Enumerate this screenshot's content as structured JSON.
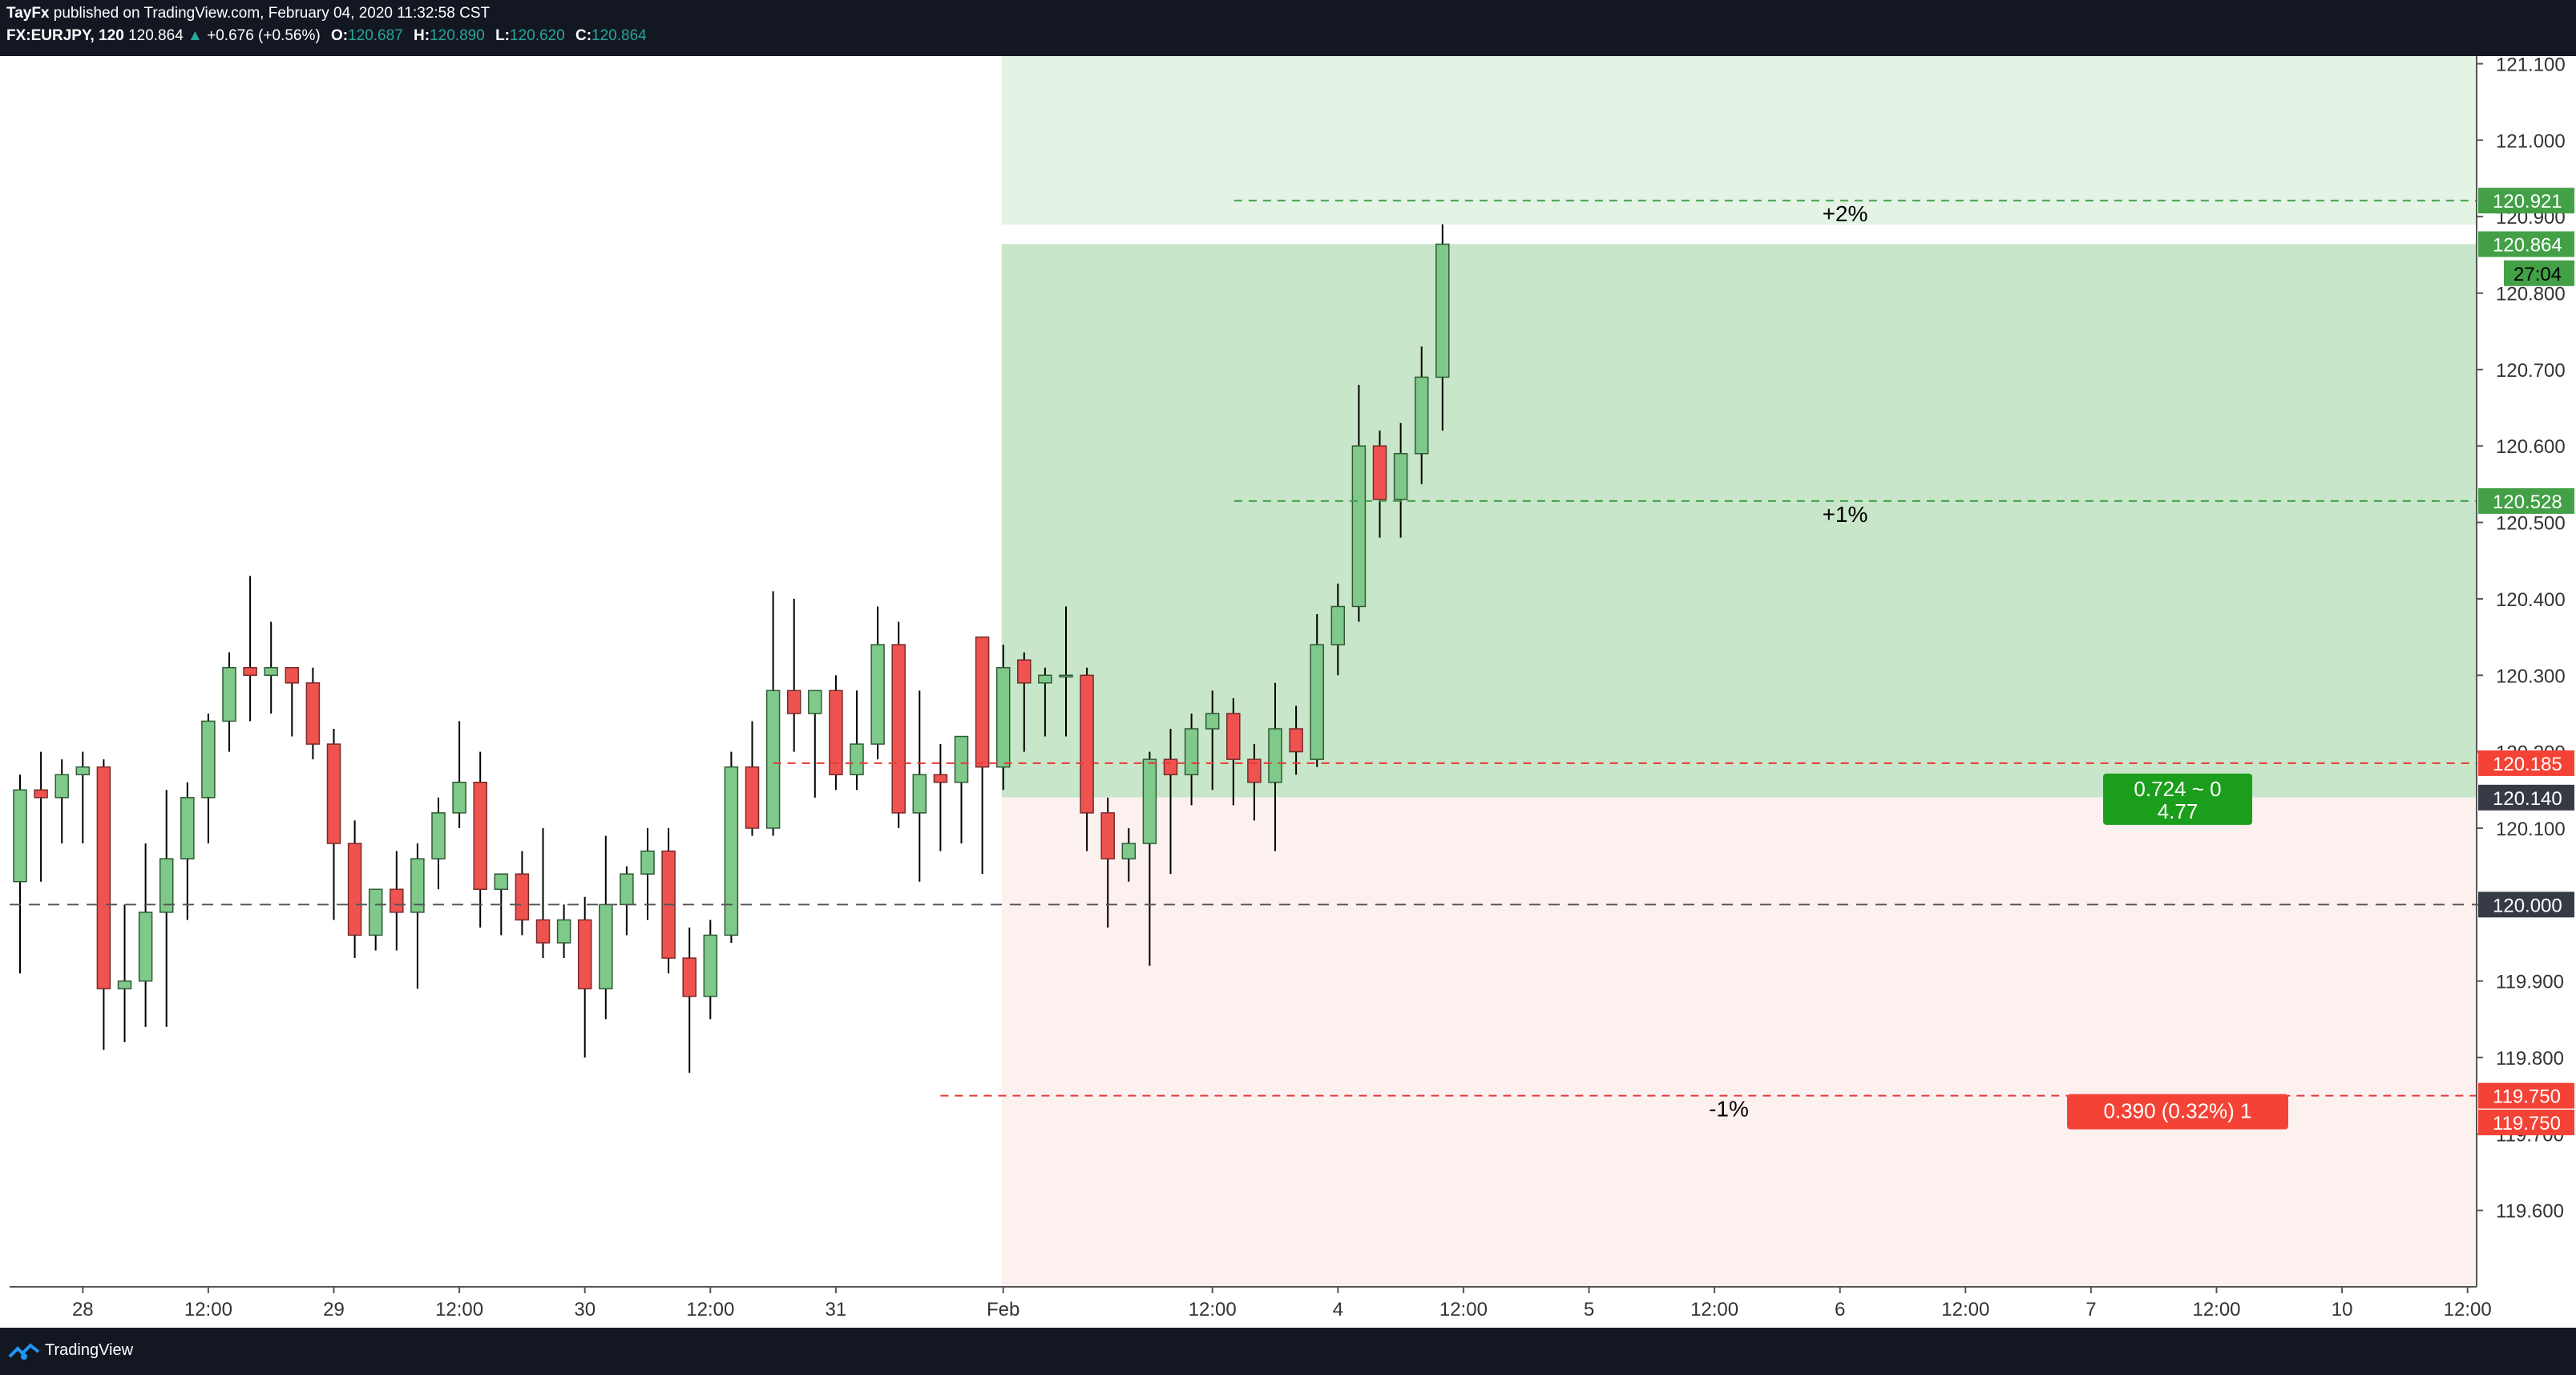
{
  "header": {
    "publisher": "TayFx",
    "published_text": "published on TradingView.com, February 04, 2020 11:32:58 CST",
    "symbol": "FX:EURJPY, 120",
    "last": "120.864",
    "change_arrow": "▲",
    "change": "+0.676 (+0.56%)",
    "open_label": "O:",
    "open": "120.687",
    "high_label": "H:",
    "high": "120.890",
    "low_label": "L:",
    "low": "120.620",
    "close_label": "C:",
    "close": "120.864"
  },
  "footer": {
    "brand": "TradingView",
    "logo_icon": "tradingview-logo-icon"
  },
  "colors": {
    "up": "#7fc98a",
    "down": "#ef5350",
    "up_border": "#2f5a35",
    "down_border": "#7a2a29",
    "profit_zone": "#c8e6c9",
    "profit_zone_light": "#e3f4e4",
    "loss_zone": "#fdf1f0",
    "green_tag": "#43a047",
    "red_tag": "#f44336",
    "dark_tag": "#363a45",
    "axis_bg": "#ffffff"
  },
  "chart_data": {
    "type": "candlestick",
    "ylim": [
      119.5,
      121.11
    ],
    "y_ticks": [
      "121.100",
      "121.000",
      "120.900",
      "120.800",
      "120.700",
      "120.600",
      "120.500",
      "120.400",
      "120.300",
      "120.200",
      "120.100",
      "120.000",
      "119.900",
      "119.800",
      "119.700",
      "119.600"
    ],
    "x_ticks": [
      {
        "label": "28",
        "i": 3
      },
      {
        "label": "12:00",
        "i": 9
      },
      {
        "label": "29",
        "i": 15
      },
      {
        "label": "12:00",
        "i": 21
      },
      {
        "label": "30",
        "i": 27
      },
      {
        "label": "12:00",
        "i": 33
      },
      {
        "label": "31",
        "i": 39
      },
      {
        "label": "Feb",
        "i": 47
      },
      {
        "label": "12:00",
        "i": 57
      },
      {
        "label": "4",
        "i": 63
      },
      {
        "label": "12:00",
        "i": 69
      },
      {
        "label": "5",
        "i": 75
      },
      {
        "label": "12:00",
        "i": 81
      },
      {
        "label": "6",
        "i": 87
      },
      {
        "label": "12:00",
        "i": 93
      },
      {
        "label": "7",
        "i": 99
      },
      {
        "label": "12:00",
        "i": 105
      },
      {
        "label": "10",
        "i": 111
      },
      {
        "label": "12:00",
        "i": 117
      }
    ],
    "candles": [
      [
        120.03,
        120.17,
        119.91,
        120.15
      ],
      [
        120.15,
        120.2,
        120.03,
        120.14
      ],
      [
        120.14,
        120.19,
        120.08,
        120.17
      ],
      [
        120.17,
        120.2,
        120.08,
        120.18
      ],
      [
        120.18,
        120.19,
        119.81,
        119.89
      ],
      [
        119.89,
        120.0,
        119.82,
        119.9
      ],
      [
        119.9,
        120.08,
        119.84,
        119.99
      ],
      [
        119.99,
        120.15,
        119.84,
        120.06
      ],
      [
        120.06,
        120.16,
        119.98,
        120.14
      ],
      [
        120.14,
        120.25,
        120.08,
        120.24
      ],
      [
        120.24,
        120.33,
        120.2,
        120.31
      ],
      [
        120.31,
        120.43,
        120.24,
        120.3
      ],
      [
        120.3,
        120.37,
        120.25,
        120.31
      ],
      [
        120.31,
        120.31,
        120.22,
        120.29
      ],
      [
        120.29,
        120.31,
        120.19,
        120.21
      ],
      [
        120.21,
        120.23,
        119.98,
        120.08
      ],
      [
        120.08,
        120.11,
        119.93,
        119.96
      ],
      [
        119.96,
        120.02,
        119.94,
        120.02
      ],
      [
        120.02,
        120.07,
        119.94,
        119.99
      ],
      [
        119.99,
        120.08,
        119.89,
        120.06
      ],
      [
        120.06,
        120.14,
        120.02,
        120.12
      ],
      [
        120.12,
        120.24,
        120.1,
        120.16
      ],
      [
        120.16,
        120.2,
        119.97,
        120.02
      ],
      [
        120.02,
        120.03,
        119.96,
        120.04
      ],
      [
        120.04,
        120.07,
        119.96,
        119.98
      ],
      [
        119.98,
        120.1,
        119.93,
        119.95
      ],
      [
        119.95,
        120.0,
        119.93,
        119.98
      ],
      [
        119.98,
        120.01,
        119.8,
        119.89
      ],
      [
        119.89,
        120.09,
        119.85,
        120.0
      ],
      [
        120.0,
        120.05,
        119.96,
        120.04
      ],
      [
        120.04,
        120.1,
        119.98,
        120.07
      ],
      [
        120.07,
        120.1,
        119.91,
        119.93
      ],
      [
        119.93,
        119.97,
        119.78,
        119.88
      ],
      [
        119.88,
        119.98,
        119.85,
        119.96
      ],
      [
        119.96,
        120.2,
        119.95,
        120.18
      ],
      [
        120.18,
        120.24,
        120.09,
        120.1
      ],
      [
        120.1,
        120.41,
        120.09,
        120.28
      ],
      [
        120.28,
        120.4,
        120.2,
        120.25
      ],
      [
        120.25,
        120.27,
        120.14,
        120.28
      ],
      [
        120.28,
        120.3,
        120.15,
        120.17
      ],
      [
        120.17,
        120.28,
        120.15,
        120.21
      ],
      [
        120.21,
        120.39,
        120.19,
        120.34
      ],
      [
        120.34,
        120.37,
        120.1,
        120.12
      ],
      [
        120.12,
        120.28,
        120.03,
        120.17
      ],
      [
        120.17,
        120.21,
        120.07,
        120.16
      ],
      [
        120.16,
        120.22,
        120.08,
        120.22
      ],
      [
        120.35,
        120.35,
        120.04,
        120.18
      ],
      [
        120.18,
        120.34,
        120.15,
        120.31
      ],
      [
        120.32,
        120.33,
        120.2,
        120.29
      ],
      [
        120.29,
        120.31,
        120.22,
        120.3
      ],
      [
        120.3,
        120.39,
        120.22,
        120.3
      ],
      [
        120.3,
        120.31,
        120.07,
        120.12
      ],
      [
        120.12,
        120.14,
        119.97,
        120.06
      ],
      [
        120.06,
        120.1,
        120.03,
        120.08
      ],
      [
        120.08,
        120.2,
        119.92,
        120.19
      ],
      [
        120.19,
        120.23,
        120.04,
        120.17
      ],
      [
        120.17,
        120.25,
        120.13,
        120.23
      ],
      [
        120.23,
        120.28,
        120.15,
        120.25
      ],
      [
        120.25,
        120.27,
        120.13,
        120.19
      ],
      [
        120.19,
        120.21,
        120.11,
        120.16
      ],
      [
        120.16,
        120.29,
        120.07,
        120.23
      ],
      [
        120.23,
        120.26,
        120.17,
        120.2
      ],
      [
        120.19,
        120.38,
        120.18,
        120.34
      ],
      [
        120.34,
        120.42,
        120.3,
        120.39
      ],
      [
        120.39,
        120.68,
        120.37,
        120.6
      ],
      [
        120.6,
        120.62,
        120.48,
        120.53
      ],
      [
        120.53,
        120.63,
        120.48,
        120.59
      ],
      [
        120.59,
        120.73,
        120.55,
        120.69
      ],
      [
        120.69,
        120.89,
        120.62,
        120.864
      ]
    ],
    "levels": [
      {
        "price": 120.921,
        "label": "+2%",
        "tag": "120.921",
        "style": "green-dashed"
      },
      {
        "price": 120.528,
        "label": "+1%",
        "tag": "120.528",
        "style": "green-dashed"
      },
      {
        "price": 120.185,
        "tag": "120.185",
        "style": "red-dashed"
      },
      {
        "price": 120.0,
        "tag": "120.000",
        "style": "gray-dashed"
      },
      {
        "price": 119.75,
        "label": "-1%",
        "tag": "119.750",
        "style": "red-dashed"
      }
    ],
    "price_tags": [
      {
        "text": "120.864",
        "price": 120.864,
        "kind": "current"
      },
      {
        "text": "27:04",
        "price": 120.826,
        "kind": "countdown"
      },
      {
        "text": "120.140",
        "price": 120.14,
        "kind": "dark"
      },
      {
        "text": "119.750",
        "price": 119.715,
        "kind": "red"
      }
    ],
    "position": {
      "entry": 120.14,
      "target": 121.11,
      "stop": 119.75,
      "reward_box": {
        "line1": "0.724 ~ 0",
        "line2": "4.77"
      },
      "risk_box": {
        "text": "0.390 (0.32%) 1"
      }
    }
  }
}
